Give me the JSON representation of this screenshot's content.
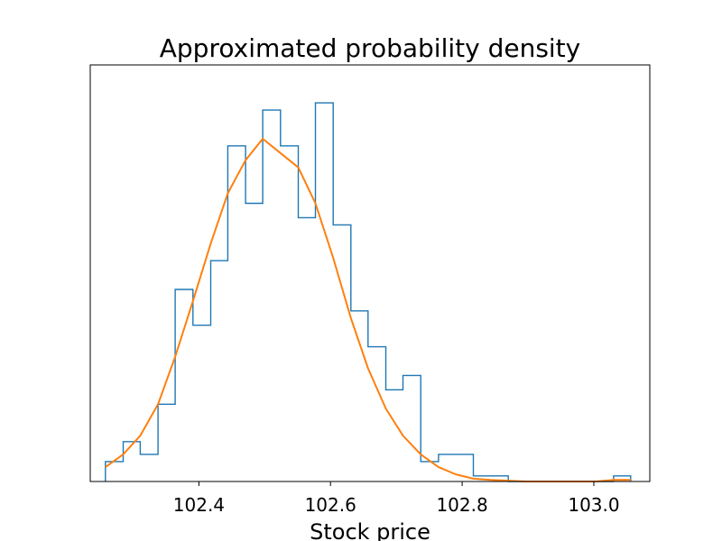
{
  "chart_data": {
    "type": "histogram",
    "title": "Approximated probability density",
    "xlabel": "Stock price",
    "ylabel": "",
    "xlim": [
      102.235,
      103.085
    ],
    "ylim": [
      0,
      1.0
    ],
    "yticks_shown": false,
    "grid": false,
    "x_ticks": [
      "102.4",
      "102.6",
      "102.8",
      "103.0"
    ],
    "x_tick_values": [
      102.4,
      102.6,
      102.8,
      103.0
    ],
    "series": [
      {
        "kind": "step-histogram",
        "color": "#1f77b4",
        "bin_edges": [
          102.258,
          102.285,
          102.311,
          102.338,
          102.364,
          102.391,
          102.418,
          102.444,
          102.471,
          102.497,
          102.524,
          102.551,
          102.577,
          102.604,
          102.631,
          102.657,
          102.684,
          102.71,
          102.737,
          102.764,
          102.79,
          102.817,
          102.843,
          102.87,
          102.897,
          102.923,
          102.95,
          102.976,
          103.003,
          103.03,
          103.056
        ],
        "heights": [
          0.05,
          0.1,
          0.068,
          0.194,
          0.482,
          0.392,
          0.554,
          0.842,
          0.698,
          0.932,
          0.842,
          0.662,
          0.95,
          0.644,
          0.428,
          0.338,
          0.23,
          0.266,
          0.05,
          0.068,
          0.068,
          0.014,
          0.014,
          0.0,
          0.0,
          0.0,
          0.0,
          0.0,
          0.0,
          0.014
        ]
      },
      {
        "kind": "density-curve",
        "color": "#ff7f0e",
        "x": [
          102.258,
          102.285,
          102.311,
          102.338,
          102.364,
          102.391,
          102.418,
          102.444,
          102.471,
          102.497,
          102.524,
          102.551,
          102.577,
          102.604,
          102.631,
          102.657,
          102.684,
          102.71,
          102.737,
          102.764,
          102.79,
          102.817,
          102.843,
          102.87,
          102.897,
          102.923,
          102.95,
          102.976,
          103.003,
          103.03,
          103.056
        ],
        "y": [
          0.036,
          0.068,
          0.115,
          0.194,
          0.313,
          0.453,
          0.597,
          0.723,
          0.806,
          0.86,
          0.824,
          0.788,
          0.698,
          0.561,
          0.41,
          0.284,
          0.183,
          0.115,
          0.068,
          0.036,
          0.018,
          0.007,
          0.004,
          0.002,
          0.0,
          0.0,
          0.0,
          0.0,
          0.0,
          0.004,
          0.004
        ]
      }
    ]
  }
}
